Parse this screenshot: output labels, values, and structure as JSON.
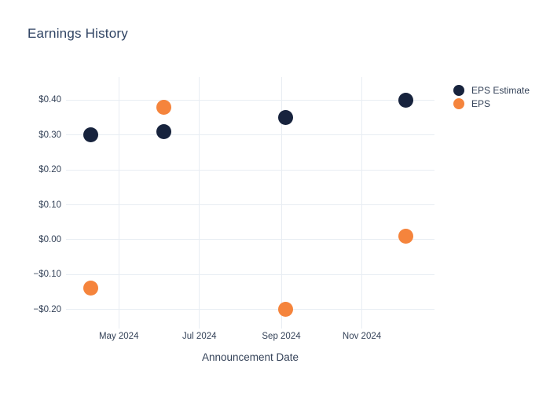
{
  "chart": {
    "background": "#ffffff",
    "colors": {
      "eps_estimate": "#17233d",
      "eps": "#f5843c",
      "gridline": "#e8edf3",
      "title_text": "#2f4363",
      "tick_text": "#344258"
    }
  },
  "chart_data": {
    "type": "scatter",
    "title": "Earnings History",
    "xlabel": "Announcement Date",
    "ylabel": "",
    "grid": true,
    "legend_position": "right",
    "x_range": [
      "2024-03-22",
      "2024-12-26"
    ],
    "ylim": [
      -0.255,
      0.4665
    ],
    "x_ticks": [
      {
        "label": "May 2024",
        "date": "2024-05-01"
      },
      {
        "label": "Jul 2024",
        "date": "2024-07-01"
      },
      {
        "label": "Sep 2024",
        "date": "2024-09-01"
      },
      {
        "label": "Nov 2024",
        "date": "2024-11-01"
      }
    ],
    "y_ticks": [
      {
        "label": "$0.40",
        "value": 0.4
      },
      {
        "label": "$0.30",
        "value": 0.3
      },
      {
        "label": "$0.20",
        "value": 0.2
      },
      {
        "label": "$0.10",
        "value": 0.1
      },
      {
        "label": "$0.00",
        "value": 0.0
      },
      {
        "label": "−$0.10",
        "value": -0.1
      },
      {
        "label": "−$0.20",
        "value": -0.2
      }
    ],
    "series": [
      {
        "name": "EPS Estimate",
        "color": "#17233d",
        "points": [
          {
            "date": "2024-04-10",
            "value": 0.3
          },
          {
            "date": "2024-06-04",
            "value": 0.31
          },
          {
            "date": "2024-09-04",
            "value": 0.35
          },
          {
            "date": "2024-12-04",
            "value": 0.4
          }
        ]
      },
      {
        "name": "EPS",
        "color": "#f5843c",
        "points": [
          {
            "date": "2024-04-10",
            "value": -0.14
          },
          {
            "date": "2024-06-04",
            "value": 0.38
          },
          {
            "date": "2024-09-04",
            "value": -0.2
          },
          {
            "date": "2024-12-04",
            "value": 0.01
          }
        ]
      }
    ]
  }
}
